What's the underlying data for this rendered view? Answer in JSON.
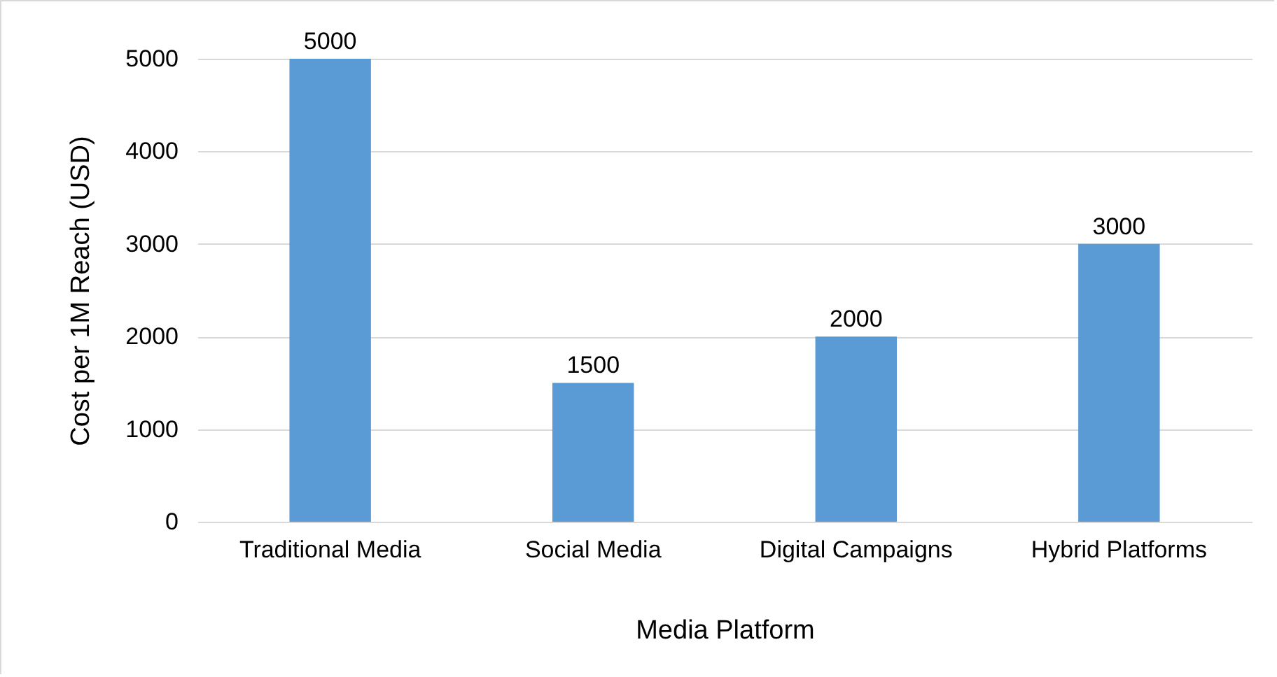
{
  "chart_data": {
    "type": "bar",
    "xlabel": "Media Platform",
    "ylabel": "Cost per 1M Reach (USD)",
    "categories": [
      "Traditional Media",
      "Social Media",
      "Digital Campaigns",
      "Hybrid Platforms"
    ],
    "values": [
      5000,
      1500,
      2000,
      3000
    ],
    "color": "#5b9bd5",
    "ylim": [
      0,
      5000
    ],
    "yticks": [
      0,
      1000,
      2000,
      3000,
      4000,
      5000
    ],
    "grid": "y",
    "data_labels": true
  }
}
